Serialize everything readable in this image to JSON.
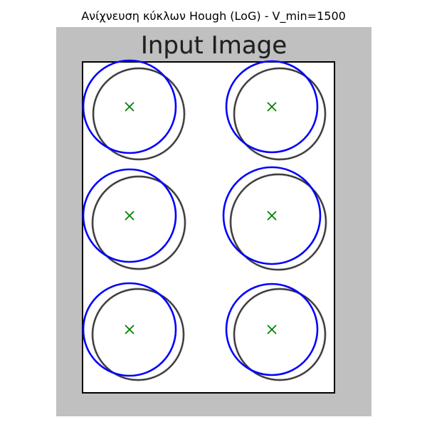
{
  "figure": {
    "title": "Ανίχνευση κύκλων Hough (LoG) - V_min=1500"
  },
  "image_panel": {
    "heading": "Input Image",
    "background_color": "#c0c0c0",
    "paper_color": "#ffffff",
    "paper_border_color": "#000000"
  },
  "markers": {
    "detected_circle_color": "#0000ff",
    "center_marker_color": "#008000",
    "center_marker_symbol": "×"
  },
  "detections": [
    {
      "id": "top-left"
    },
    {
      "id": "top-right"
    },
    {
      "id": "middle-left"
    },
    {
      "id": "middle-right"
    },
    {
      "id": "bottom-left"
    },
    {
      "id": "bottom-right"
    }
  ]
}
